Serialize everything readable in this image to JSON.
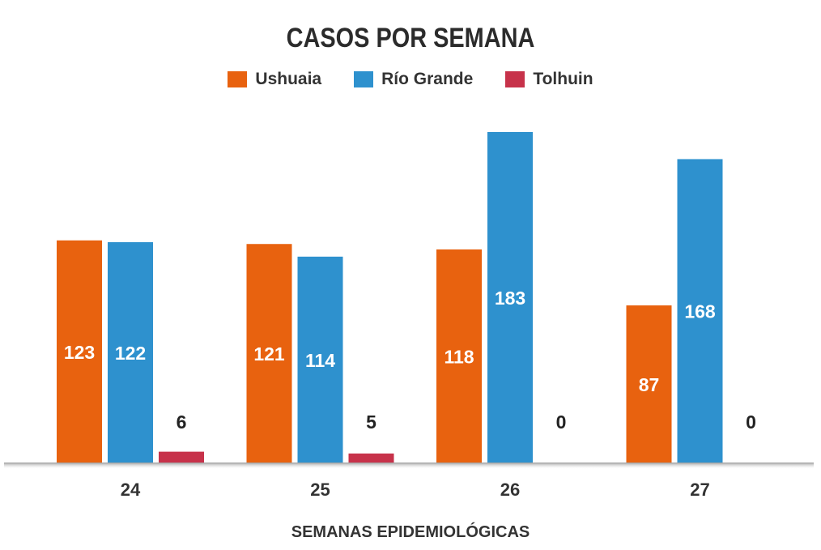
{
  "chart_data": {
    "type": "bar",
    "title": "CASOS POR SEMANA",
    "xlabel": "SEMANAS EPIDEMIOLÓGICAS",
    "ylabel": "",
    "categories": [
      "24",
      "25",
      "26",
      "27"
    ],
    "series": [
      {
        "name": "Ushuaia",
        "color": "#E8620F",
        "values": [
          123,
          121,
          118,
          87
        ]
      },
      {
        "name": "Río Grande",
        "color": "#2E91CE",
        "values": [
          122,
          114,
          183,
          168
        ]
      },
      {
        "name": "Tolhuin",
        "color": "#C7324A",
        "values": [
          6,
          5,
          0,
          0
        ]
      }
    ],
    "ylim": [
      0,
      190
    ],
    "grid": false,
    "legend": "top-center"
  }
}
